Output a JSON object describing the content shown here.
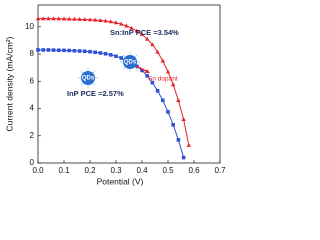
{
  "chart_data": {
    "type": "line",
    "x_label": "Potential (V)",
    "y_label": "Current density (mA/cm²)",
    "x": [
      0,
      0.02,
      0.04,
      0.06,
      0.08,
      0.1,
      0.12,
      0.14,
      0.16,
      0.18,
      0.2,
      0.22,
      0.24,
      0.26,
      0.28,
      0.3,
      0.32,
      0.34,
      0.36,
      0.38,
      0.4,
      0.42,
      0.44,
      0.46,
      0.48,
      0.5,
      0.52,
      0.54,
      0.56,
      0.58
    ],
    "series": [
      {
        "color": "#e8202a",
        "marker": "triangle",
        "values": [
          10.6,
          10.6,
          10.6,
          10.6,
          10.59,
          10.58,
          10.57,
          10.56,
          10.55,
          10.54,
          10.52,
          10.5,
          10.47,
          10.43,
          10.38,
          10.3,
          10.2,
          10.07,
          9.9,
          9.7,
          9.45,
          9.1,
          8.7,
          8.15,
          7.5,
          6.7,
          5.75,
          4.6,
          3.2,
          1.3
        ]
      },
      {
        "color": "#3050d8",
        "marker": "square",
        "values": [
          8.3,
          8.3,
          8.3,
          8.29,
          8.28,
          8.27,
          8.26,
          8.24,
          8.22,
          8.2,
          8.17,
          8.13,
          8.08,
          8.02,
          7.94,
          7.84,
          7.71,
          7.55,
          7.35,
          7.1,
          6.8,
          6.4,
          5.9,
          5.3,
          4.6,
          3.75,
          2.8,
          1.7,
          0.4,
          null
        ]
      }
    ],
    "annotations": [
      "Sn:InP PCE =3.54%",
      "InP PCE =2.57%",
      "QDs",
      "QDs",
      "Sn dopant"
    ],
    "xlim": [
      0,
      0.7
    ],
    "ylim": [
      0,
      11.6
    ],
    "xticks": [
      {
        "value": 0,
        "label": "0.0"
      },
      0.1,
      0.2,
      0.3,
      0.4,
      0.5,
      0.6,
      0.7
    ],
    "yticks": [
      0,
      2,
      4,
      6,
      8,
      10
    ]
  }
}
